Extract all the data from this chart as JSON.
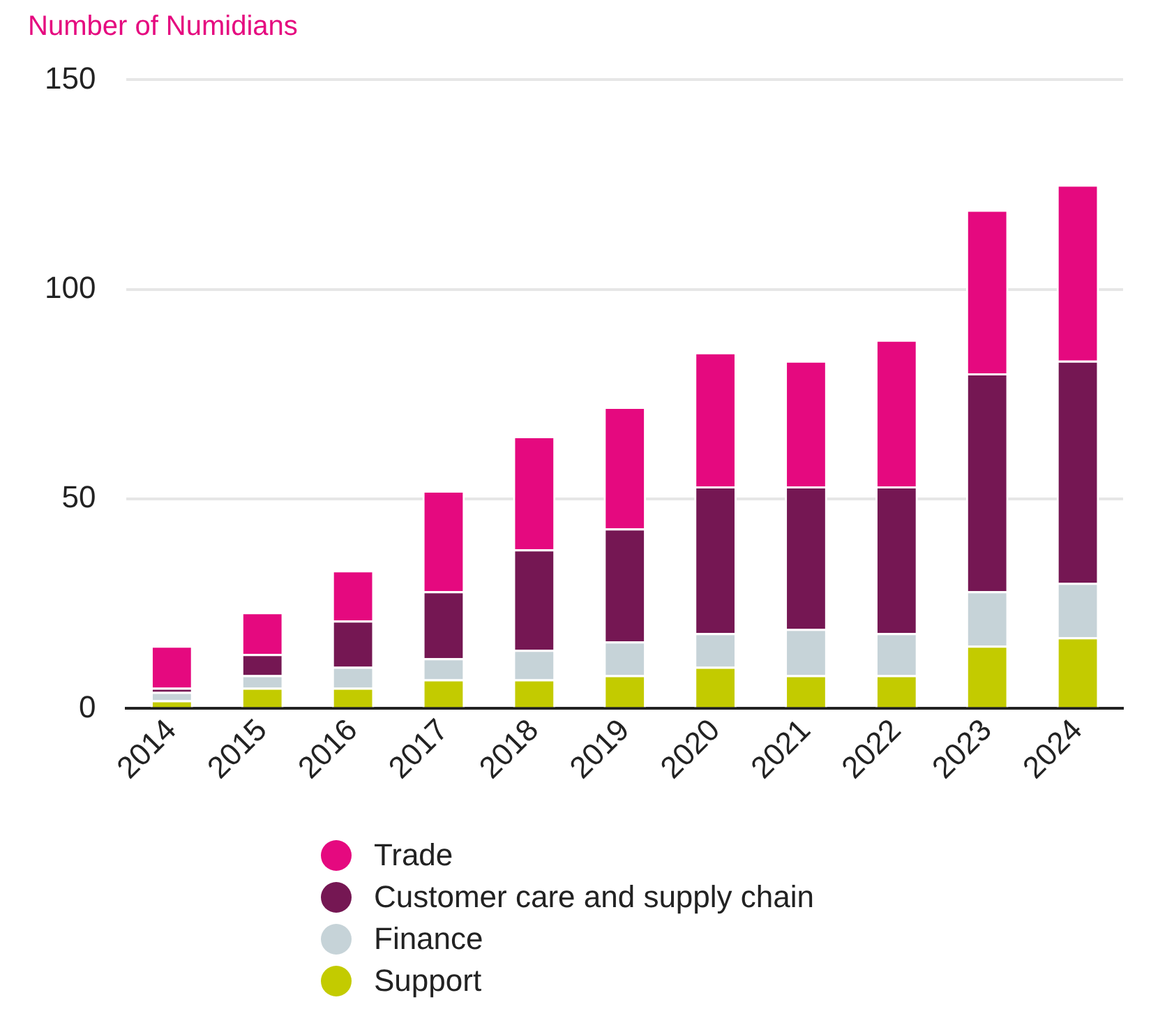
{
  "chart_data": {
    "type": "bar",
    "stacked": true,
    "ylabel": "Number of Numidians",
    "categories": [
      "2014",
      "2015",
      "2016",
      "2017",
      "2018",
      "2019",
      "2020",
      "2021",
      "2022",
      "2023",
      "2024"
    ],
    "series": [
      {
        "name": "Support",
        "color": "#c3cb00",
        "values": [
          2,
          5,
          5,
          7,
          7,
          8,
          10,
          8,
          8,
          15,
          17
        ]
      },
      {
        "name": "Finance",
        "color": "#c6d3d8",
        "values": [
          2,
          3,
          5,
          5,
          7,
          8,
          8,
          11,
          10,
          13,
          13
        ]
      },
      {
        "name": "Customer care and supply chain",
        "color": "#751753",
        "values": [
          1,
          5,
          11,
          16,
          24,
          27,
          35,
          34,
          35,
          52,
          53
        ]
      },
      {
        "name": "Trade",
        "color": "#e5097f",
        "values": [
          10,
          10,
          12,
          24,
          27,
          29,
          32,
          30,
          35,
          39,
          42
        ]
      }
    ],
    "ylim": [
      0,
      150
    ],
    "yticks": [
      0,
      50,
      100,
      150
    ],
    "grid": "y",
    "legend": "bottom"
  }
}
